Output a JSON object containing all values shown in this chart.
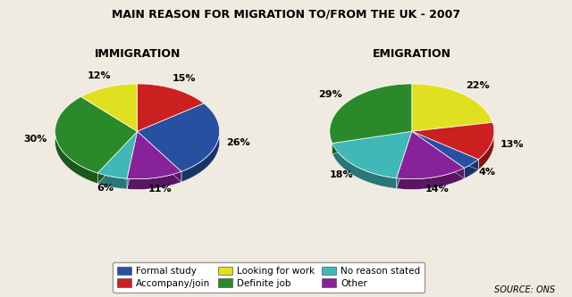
{
  "title": "MAIN REASON FOR MIGRATION TO/FROM THE UK - 2007",
  "immigration_label": "IMMIGRATION",
  "emigration_label": "EMIGRATION",
  "source": "SOURCE: ONS",
  "categories": [
    "Formal study",
    "Accompany/join",
    "Looking for work",
    "Definite job",
    "No reason stated",
    "Other"
  ],
  "colors": [
    "#2750a0",
    "#cc2020",
    "#e0e020",
    "#2a8a2a",
    "#40b8b8",
    "#882299"
  ],
  "immigration_values": [
    26,
    15,
    12,
    30,
    6,
    11
  ],
  "emigration_values": [
    4,
    13,
    22,
    29,
    18,
    14
  ],
  "background_color": "#f0ebe0",
  "legend_order": [
    0,
    1,
    2,
    3,
    4,
    5
  ]
}
